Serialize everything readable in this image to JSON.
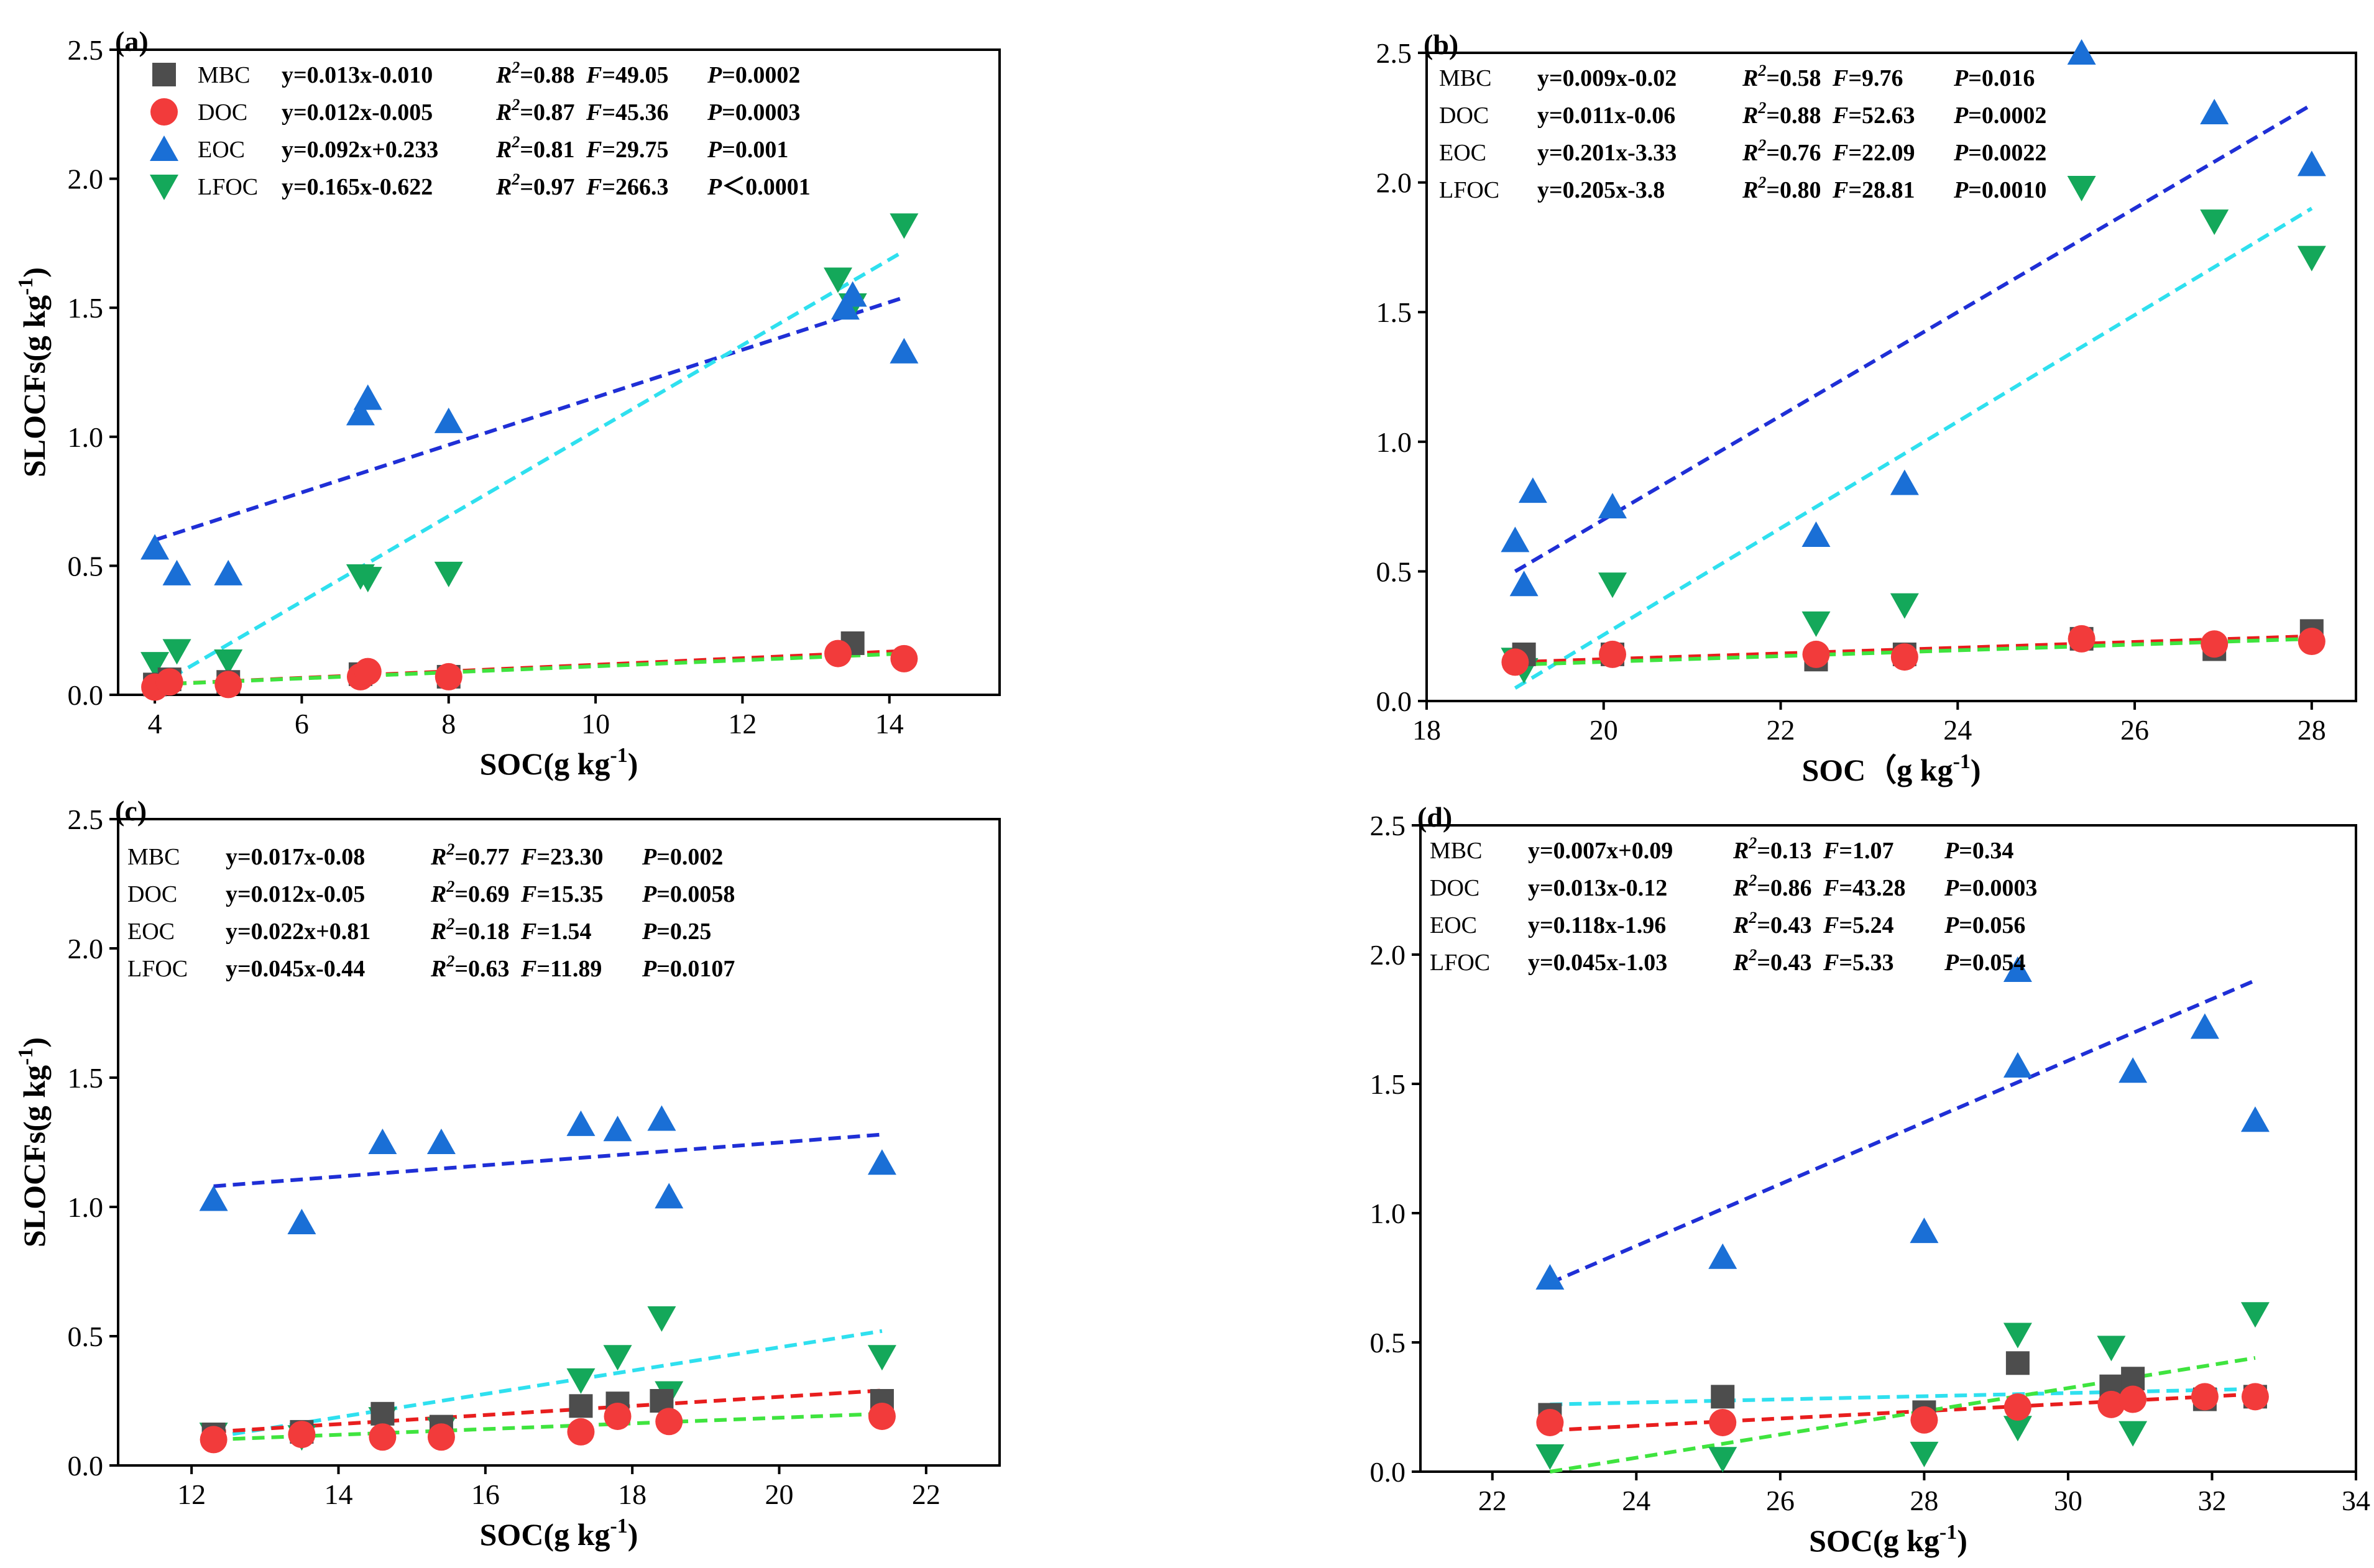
{
  "figure": {
    "description_free": true
  },
  "colors": {
    "MBC": "#4d4d4d",
    "DOC": "#f23b3b",
    "EOC": "#1a6fd6",
    "LFOC": "#14a85a",
    "fit_blue": "#1f2fd6",
    "fit_cyan": "#2fe0ef",
    "fit_red": "#e81e1e",
    "fit_green": "#3fe43f"
  },
  "chart_data": [
    {
      "type": "scatter",
      "panel_label": "(a)",
      "xlabel": "SOC(g kg-1)",
      "ylabel": "SLOCFs(g kg-1)",
      "xlim": [
        3.5,
        15.5
      ],
      "ylim": [
        0,
        2.5
      ],
      "xticks": [
        4,
        6,
        8,
        10,
        12,
        14
      ],
      "yticks": [
        0.0,
        0.5,
        1.0,
        1.5,
        2.0,
        2.5
      ],
      "legend": [
        {
          "name": "MBC",
          "eq": "y=0.013x-0.010",
          "r2": "=0.88",
          "f": "=49.05",
          "p": "=0.0002"
        },
        {
          "name": "DOC",
          "eq": "y=0.012x-0.005",
          "r2": "=0.87",
          "f": "=45.36",
          "p": "=0.0003"
        },
        {
          "name": "EOC",
          "eq": "y=0.092x+0.233",
          "r2": "=0.81",
          "f": "=29.75",
          "p": "=0.001"
        },
        {
          "name": "LFOC",
          "eq": "y=0.165x-0.622",
          "r2": "=0.97",
          "f": "=266.3",
          "p": "＜0.0001"
        }
      ],
      "series": [
        {
          "name": "MBC",
          "x": [
            4.0,
            4.2,
            5.0,
            6.8,
            8.0,
            13.5
          ],
          "y": [
            0.04,
            0.06,
            0.05,
            0.08,
            0.07,
            0.2
          ]
        },
        {
          "name": "DOC",
          "x": [
            4.0,
            4.2,
            5.0,
            6.8,
            6.9,
            8.0,
            13.3,
            14.2
          ],
          "y": [
            0.03,
            0.05,
            0.04,
            0.07,
            0.09,
            0.07,
            0.16,
            0.14
          ]
        },
        {
          "name": "EOC",
          "x": [
            4.0,
            4.3,
            5.0,
            6.8,
            6.9,
            8.0,
            13.4,
            13.5,
            14.2
          ],
          "y": [
            0.57,
            0.47,
            0.47,
            1.09,
            1.15,
            1.06,
            1.5,
            1.55,
            1.33
          ]
        },
        {
          "name": "LFOC",
          "x": [
            4.0,
            4.3,
            5.0,
            6.8,
            6.9,
            8.0,
            13.3,
            13.5,
            14.2
          ],
          "y": [
            0.12,
            0.17,
            0.13,
            0.46,
            0.45,
            0.47,
            1.61,
            1.51,
            1.82
          ]
        }
      ],
      "fits": [
        {
          "color": "fit_blue",
          "x": [
            4.0,
            14.2
          ],
          "y": [
            0.6,
            1.54
          ]
        },
        {
          "color": "fit_cyan",
          "x": [
            4.0,
            14.2
          ],
          "y": [
            0.03,
            1.72
          ]
        },
        {
          "color": "fit_red",
          "x": [
            4.0,
            14.2
          ],
          "y": [
            0.04,
            0.17
          ]
        },
        {
          "color": "fit_green",
          "x": [
            4.0,
            14.2
          ],
          "y": [
            0.04,
            0.16
          ]
        }
      ]
    },
    {
      "type": "scatter",
      "panel_label": "(b)",
      "xlabel": "SOC（g kg-1)",
      "ylabel": "",
      "xlim": [
        18,
        28.5
      ],
      "ylim": [
        0,
        2.5
      ],
      "xticks": [
        18,
        20,
        22,
        24,
        26,
        28
      ],
      "yticks": [
        0.0,
        0.5,
        1.0,
        1.5,
        2.0,
        2.5
      ],
      "legend": [
        {
          "name": "MBC",
          "eq": "y=0.009x-0.02",
          "r2": "=0.58",
          "f": "=9.76",
          "p": "=0.016"
        },
        {
          "name": "DOC",
          "eq": "y=0.011x-0.06",
          "r2": "=0.88",
          "f": "=52.63",
          "p": "=0.0002"
        },
        {
          "name": "EOC",
          "eq": "y=0.201x-3.33",
          "r2": "=0.76",
          "f": "=22.09",
          "p": "=0.0022"
        },
        {
          "name": "LFOC",
          "eq": "y=0.205x-3.8",
          "r2": "=0.80",
          "f": "=28.81",
          "p": "=0.0010"
        }
      ],
      "series": [
        {
          "name": "MBC",
          "x": [
            19.1,
            20.1,
            22.4,
            23.4,
            25.4,
            26.9,
            28.0
          ],
          "y": [
            0.18,
            0.18,
            0.16,
            0.18,
            0.24,
            0.2,
            0.27
          ]
        },
        {
          "name": "DOC",
          "x": [
            19.0,
            20.1,
            22.4,
            23.4,
            25.4,
            26.9,
            28.0
          ],
          "y": [
            0.15,
            0.18,
            0.18,
            0.17,
            0.24,
            0.22,
            0.23
          ]
        },
        {
          "name": "EOC",
          "x": [
            19.0,
            19.1,
            19.2,
            20.1,
            22.4,
            23.4,
            25.4,
            26.9,
            28.0
          ],
          "y": [
            0.62,
            0.45,
            0.81,
            0.75,
            0.64,
            0.84,
            2.5,
            2.27,
            2.07
          ]
        },
        {
          "name": "LFOC",
          "x": [
            19.0,
            19.1,
            20.1,
            22.4,
            23.4,
            25.4,
            26.9,
            28.0
          ],
          "y": [
            0.16,
            0.12,
            0.45,
            0.3,
            0.37,
            1.98,
            1.85,
            1.71
          ]
        }
      ],
      "fits": [
        {
          "color": "fit_blue",
          "x": [
            19.0,
            28.0
          ],
          "y": [
            0.5,
            2.3
          ]
        },
        {
          "color": "fit_cyan",
          "x": [
            19.0,
            28.0
          ],
          "y": [
            0.05,
            1.9
          ]
        },
        {
          "color": "fit_red",
          "x": [
            19.0,
            28.0
          ],
          "y": [
            0.15,
            0.25
          ]
        },
        {
          "color": "fit_green",
          "x": [
            19.0,
            28.0
          ],
          "y": [
            0.14,
            0.24
          ]
        }
      ]
    },
    {
      "type": "scatter",
      "panel_label": "(c)",
      "xlabel": "SOC(g kg-1)",
      "ylabel": "SLOCFs(g kg-1)",
      "xlim": [
        11,
        23
      ],
      "ylim": [
        0,
        2.5
      ],
      "xticks": [
        12,
        14,
        16,
        18,
        20,
        22
      ],
      "yticks": [
        0.0,
        0.5,
        1.0,
        1.5,
        2.0,
        2.5
      ],
      "legend": [
        {
          "name": "MBC",
          "eq": "y=0.017x-0.08",
          "r2": "=0.77",
          "f": "=23.30",
          "p": "=0.002"
        },
        {
          "name": "DOC",
          "eq": "y=0.012x-0.05",
          "r2": "=0.69",
          "f": "=15.35",
          "p": "=0.0058"
        },
        {
          "name": "EOC",
          "eq": "y=0.022x+0.81",
          "r2": "=0.18",
          "f": "=1.54",
          "p": "=0.25"
        },
        {
          "name": "LFOC",
          "eq": "y=0.045x-0.44",
          "r2": "=0.63",
          "f": "=11.89",
          "p": "=0.0107"
        }
      ],
      "series": [
        {
          "name": "MBC",
          "x": [
            12.3,
            13.5,
            14.6,
            15.4,
            17.3,
            17.8,
            18.4,
            21.4
          ],
          "y": [
            0.12,
            0.13,
            0.2,
            0.15,
            0.23,
            0.24,
            0.25,
            0.25
          ]
        },
        {
          "name": "DOC",
          "x": [
            12.3,
            13.5,
            14.6,
            15.4,
            17.3,
            17.8,
            18.5,
            21.4
          ],
          "y": [
            0.1,
            0.12,
            0.11,
            0.11,
            0.13,
            0.19,
            0.17,
            0.19
          ]
        },
        {
          "name": "EOC",
          "x": [
            12.3,
            13.5,
            14.6,
            15.4,
            17.3,
            17.8,
            18.4,
            18.5,
            21.4
          ],
          "y": [
            1.03,
            0.94,
            1.25,
            1.25,
            1.32,
            1.3,
            1.34,
            1.04,
            1.17
          ]
        },
        {
          "name": "LFOC",
          "x": [
            12.3,
            13.5,
            14.6,
            15.4,
            17.3,
            17.8,
            18.4,
            18.5,
            21.4
          ],
          "y": [
            0.12,
            0.11,
            0.18,
            0.14,
            0.33,
            0.42,
            0.57,
            0.28,
            0.42
          ]
        }
      ],
      "fits": [
        {
          "color": "fit_blue",
          "x": [
            12.3,
            21.4
          ],
          "y": [
            1.08,
            1.28
          ]
        },
        {
          "color": "fit_cyan",
          "x": [
            12.3,
            21.4
          ],
          "y": [
            0.11,
            0.52
          ]
        },
        {
          "color": "fit_red",
          "x": [
            12.3,
            21.4
          ],
          "y": [
            0.13,
            0.29
          ]
        },
        {
          "color": "fit_green",
          "x": [
            12.3,
            21.4
          ],
          "y": [
            0.1,
            0.2
          ]
        }
      ]
    },
    {
      "type": "scatter",
      "panel_label": "(d)",
      "xlabel": "SOC(g kg-1)",
      "ylabel": "",
      "xlim": [
        21,
        34
      ],
      "ylim": [
        0,
        2.5
      ],
      "xticks": [
        22,
        24,
        26,
        28,
        30,
        32,
        34
      ],
      "yticks": [
        0.0,
        0.5,
        1.0,
        1.5,
        2.0,
        2.5
      ],
      "legend": [
        {
          "name": "MBC",
          "eq": "y=0.007x+0.09",
          "r2": "=0.13",
          "f": "=1.07",
          "p": "=0.34"
        },
        {
          "name": "DOC",
          "eq": "y=0.013x-0.12",
          "r2": "=0.86",
          "f": "=43.28",
          "p": "=0.0003"
        },
        {
          "name": "EOC",
          "eq": "y=0.118x-1.96",
          "r2": "=0.43",
          "f": "=5.24",
          "p": "=0.056"
        },
        {
          "name": "LFOC",
          "eq": "y=0.045x-1.03",
          "r2": "=0.43",
          "f": "=5.33",
          "p": "=0.054"
        }
      ],
      "series": [
        {
          "name": "MBC",
          "x": [
            22.8,
            25.2,
            28.0,
            29.3,
            30.6,
            30.9,
            31.9,
            32.6
          ],
          "y": [
            0.22,
            0.29,
            0.23,
            0.42,
            0.33,
            0.36,
            0.28,
            0.29
          ]
        },
        {
          "name": "DOC",
          "x": [
            22.8,
            25.2,
            28.0,
            29.3,
            30.6,
            30.9,
            31.9,
            32.6
          ],
          "y": [
            0.19,
            0.19,
            0.2,
            0.25,
            0.26,
            0.28,
            0.29,
            0.29
          ]
        },
        {
          "name": "EOC",
          "x": [
            22.8,
            25.2,
            28.0,
            29.3,
            29.3,
            30.9,
            31.9,
            32.6
          ],
          "y": [
            0.75,
            0.83,
            0.93,
            1.94,
            1.57,
            1.55,
            1.72,
            1.36
          ]
        },
        {
          "name": "LFOC",
          "x": [
            22.8,
            25.2,
            28.0,
            29.3,
            29.3,
            30.6,
            30.9,
            32.6
          ],
          "y": [
            0.06,
            0.05,
            0.07,
            0.53,
            0.17,
            0.48,
            0.15,
            0.61
          ]
        }
      ],
      "fits": [
        {
          "color": "fit_blue",
          "x": [
            22.8,
            32.6
          ],
          "y": [
            0.73,
            1.9
          ]
        },
        {
          "color": "fit_cyan",
          "x": [
            22.8,
            32.6
          ],
          "y": [
            0.26,
            0.32
          ]
        },
        {
          "color": "fit_red",
          "x": [
            22.8,
            32.6
          ],
          "y": [
            0.16,
            0.3
          ]
        },
        {
          "color": "fit_green",
          "x": [
            22.8,
            32.6
          ],
          "y": [
            0.0,
            0.44
          ]
        }
      ]
    }
  ]
}
